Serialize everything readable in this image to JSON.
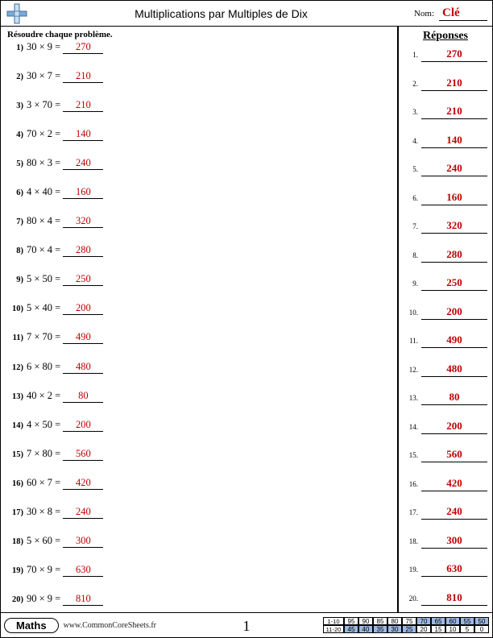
{
  "header": {
    "title": "Multiplications par Multiples de Dix",
    "name_label": "Nom:",
    "name_value": "Clé",
    "icon_colors": {
      "h": "#7da9d6",
      "v": "#c9dff2",
      "border": "#3a6fa8"
    }
  },
  "instructions": "Résoudre chaque problème.",
  "answers_heading": "Réponses",
  "problems": [
    {
      "n": "1)",
      "expr": "30 × 9 = ",
      "answer": "270"
    },
    {
      "n": "2)",
      "expr": "30 × 7 = ",
      "answer": "210"
    },
    {
      "n": "3)",
      "expr": "3 × 70 = ",
      "answer": "210"
    },
    {
      "n": "4)",
      "expr": "70 × 2 = ",
      "answer": "140"
    },
    {
      "n": "5)",
      "expr": "80 × 3 = ",
      "answer": "240"
    },
    {
      "n": "6)",
      "expr": "4 × 40 = ",
      "answer": "160"
    },
    {
      "n": "7)",
      "expr": "80 × 4 = ",
      "answer": "320"
    },
    {
      "n": "8)",
      "expr": "70 × 4 = ",
      "answer": "280"
    },
    {
      "n": "9)",
      "expr": "5 × 50 = ",
      "answer": "250"
    },
    {
      "n": "10)",
      "expr": "5 × 40 = ",
      "answer": "200"
    },
    {
      "n": "11)",
      "expr": "7 × 70 = ",
      "answer": "490"
    },
    {
      "n": "12)",
      "expr": "6 × 80 = ",
      "answer": "480"
    },
    {
      "n": "13)",
      "expr": "40 × 2 = ",
      "answer": "80"
    },
    {
      "n": "14)",
      "expr": "4 × 50 = ",
      "answer": "200"
    },
    {
      "n": "15)",
      "expr": "7 × 80 = ",
      "answer": "560"
    },
    {
      "n": "16)",
      "expr": "60 × 7 = ",
      "answer": "420"
    },
    {
      "n": "17)",
      "expr": "30 × 8 = ",
      "answer": "240"
    },
    {
      "n": "18)",
      "expr": "5 × 60 = ",
      "answer": "300"
    },
    {
      "n": "19)",
      "expr": "70 × 9 = ",
      "answer": "630"
    },
    {
      "n": "20)",
      "expr": "90 × 9 = ",
      "answer": "810"
    }
  ],
  "footer": {
    "subject": "Maths",
    "site": "www.CommonCoreSheets.fr",
    "page_number": "1",
    "score_grid": {
      "rows": [
        {
          "label": "1-10",
          "cells": [
            "95",
            "90",
            "85",
            "80",
            "75",
            "70",
            "65",
            "60",
            "55",
            "50"
          ],
          "shade_from": 5
        },
        {
          "label": "11-20",
          "cells": [
            "45",
            "40",
            "35",
            "30",
            "25",
            "20",
            "15",
            "10",
            "5",
            "0"
          ],
          "shade_from": 0,
          "shade_to": 5
        }
      ],
      "shade_color": "#9cb8e4"
    }
  },
  "colors": {
    "answer_text": "#c00000",
    "border": "#000000",
    "background": "#ffffff"
  }
}
